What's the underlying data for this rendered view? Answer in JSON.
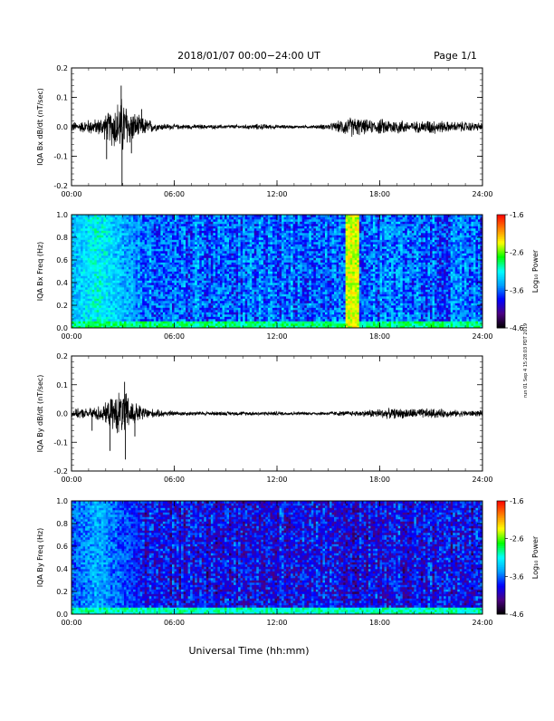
{
  "header": {
    "title": "2018/01/07  00:00−24:00 UT",
    "page": "Page 1/1"
  },
  "footer": {
    "xlabel": "Universal Time (hh:mm)"
  },
  "side_note": "run 01 Sep 4 15:28:03 PDT 2019",
  "colors": {
    "trace": "#000000",
    "colormap": [
      "#000000",
      "#4b0082",
      "#0000ff",
      "#00a0ff",
      "#00ffff",
      "#00ff00",
      "#ffff00",
      "#ff8000",
      "#ff0000"
    ]
  },
  "chart_data": [
    {
      "type": "line",
      "ylabel": "IQA Bx dB/dt (nT/sec)",
      "xlim": [
        0,
        24
      ],
      "ylim": [
        -0.2,
        0.2
      ],
      "x_ticks": [
        "00:00",
        "06:00",
        "12:00",
        "18:00",
        "24:00"
      ],
      "y_ticks": [
        "-0.2",
        "-0.1",
        "0.0",
        "0.1",
        "0.2"
      ],
      "y_tick_values": [
        -0.2,
        -0.1,
        0.0,
        0.1,
        0.2
      ],
      "envelope": {
        "x": [
          0,
          0.5,
          1.0,
          1.5,
          2.0,
          2.2,
          2.5,
          2.8,
          3.0,
          3.3,
          3.6,
          4.0,
          4.5,
          5.0,
          6.0,
          8.0,
          10.0,
          11.0,
          12.0,
          13.0,
          14.0,
          15.0,
          15.5,
          16.0,
          16.5,
          17.0,
          17.5,
          18.0,
          18.5,
          19.0,
          20.0,
          21.0,
          22.0,
          23.0,
          24.0
        ],
        "amplitude": [
          0.02,
          0.02,
          0.03,
          0.03,
          0.05,
          0.06,
          0.09,
          0.11,
          0.12,
          0.08,
          0.06,
          0.04,
          0.03,
          0.015,
          0.01,
          0.008,
          0.008,
          0.012,
          0.008,
          0.006,
          0.006,
          0.012,
          0.02,
          0.035,
          0.04,
          0.03,
          0.025,
          0.03,
          0.03,
          0.03,
          0.02,
          0.03,
          0.02,
          0.02,
          0.015
        ]
      },
      "spikes": [
        {
          "x": 2.05,
          "y": -0.11
        },
        {
          "x": 2.9,
          "y": 0.14
        },
        {
          "x": 2.95,
          "y": -0.2
        },
        {
          "x": 3.5,
          "y": -0.09
        },
        {
          "x": 4.1,
          "y": 0.06
        }
      ]
    },
    {
      "type": "heatmap",
      "ylabel": "IQA Bx Freq (Hz)",
      "xlim": [
        0,
        24
      ],
      "ylim": [
        0,
        1
      ],
      "x_ticks": [
        "00:00",
        "06:00",
        "12:00",
        "18:00",
        "24:00"
      ],
      "y_ticks": [
        "0.0",
        "0.2",
        "0.4",
        "0.6",
        "0.8",
        "1.0"
      ],
      "y_tick_values": [
        0.0,
        0.2,
        0.4,
        0.6,
        0.8,
        1.0
      ],
      "colorbar": {
        "label": "Log₁₀ Power",
        "range": [
          -4.6,
          -1.6
        ],
        "ticks": [
          "-1.6",
          "-2.6",
          "-3.6",
          "-4.6"
        ],
        "tick_values": [
          -1.6,
          -2.6,
          -3.6,
          -4.6
        ]
      },
      "features": [
        {
          "name": "broadband",
          "x": [
            16.0,
            16.75
          ],
          "level": -2.4
        },
        {
          "name": "low-frequency",
          "x": [
            0,
            24
          ],
          "f": [
            0,
            0.05
          ],
          "level": -2.9
        },
        {
          "name": "early-band",
          "x": [
            0,
            4
          ],
          "level": -3.1
        }
      ],
      "background_level": -3.6
    },
    {
      "type": "line",
      "ylabel": "IQA By dB/dt (nT/sec)",
      "xlim": [
        0,
        24
      ],
      "ylim": [
        -0.2,
        0.2
      ],
      "x_ticks": [
        "00:00",
        "06:00",
        "12:00",
        "18:00",
        "24:00"
      ],
      "y_ticks": [
        "-0.2",
        "-0.1",
        "0.0",
        "0.1",
        "0.2"
      ],
      "y_tick_values": [
        -0.2,
        -0.1,
        0.0,
        0.1,
        0.2
      ],
      "envelope": {
        "x": [
          0,
          0.5,
          1.0,
          1.5,
          2.0,
          2.3,
          2.6,
          2.9,
          3.2,
          3.5,
          3.8,
          4.2,
          4.6,
          5.0,
          6.0,
          8.0,
          10.0,
          12.0,
          14.0,
          16.0,
          17.0,
          18.0,
          19.0,
          20.0,
          21.0,
          22.0,
          23.0,
          24.0
        ],
        "amplitude": [
          0.015,
          0.02,
          0.02,
          0.03,
          0.04,
          0.06,
          0.08,
          0.09,
          0.08,
          0.06,
          0.04,
          0.03,
          0.02,
          0.015,
          0.01,
          0.008,
          0.008,
          0.008,
          0.006,
          0.01,
          0.012,
          0.02,
          0.02,
          0.02,
          0.02,
          0.015,
          0.012,
          0.012
        ]
      },
      "spikes": [
        {
          "x": 1.2,
          "y": -0.06
        },
        {
          "x": 2.25,
          "y": -0.13
        },
        {
          "x": 3.1,
          "y": 0.11
        },
        {
          "x": 3.15,
          "y": -0.16
        },
        {
          "x": 3.7,
          "y": -0.08
        }
      ]
    },
    {
      "type": "heatmap",
      "ylabel": "IQA By Freq (Hz)",
      "xlim": [
        0,
        24
      ],
      "ylim": [
        0,
        1
      ],
      "x_ticks": [
        "00:00",
        "06:00",
        "12:00",
        "18:00",
        "24:00"
      ],
      "y_ticks": [
        "0.0",
        "0.2",
        "0.4",
        "0.6",
        "0.8",
        "1.0"
      ],
      "y_tick_values": [
        0.0,
        0.2,
        0.4,
        0.6,
        0.8,
        1.0
      ],
      "colorbar": {
        "label": "Log₁₀ Power",
        "range": [
          -4.6,
          -1.6
        ],
        "ticks": [
          "-1.6",
          "-2.6",
          "-3.6",
          "-4.6"
        ],
        "tick_values": [
          -1.6,
          -2.6,
          -3.6,
          -4.6
        ]
      },
      "features": [
        {
          "name": "low-frequency",
          "x": [
            0,
            24
          ],
          "f": [
            0,
            0.05
          ],
          "level": -3.0
        },
        {
          "name": "early-band",
          "x": [
            0,
            4
          ],
          "level": -3.4
        }
      ],
      "background_level": -3.9
    }
  ]
}
